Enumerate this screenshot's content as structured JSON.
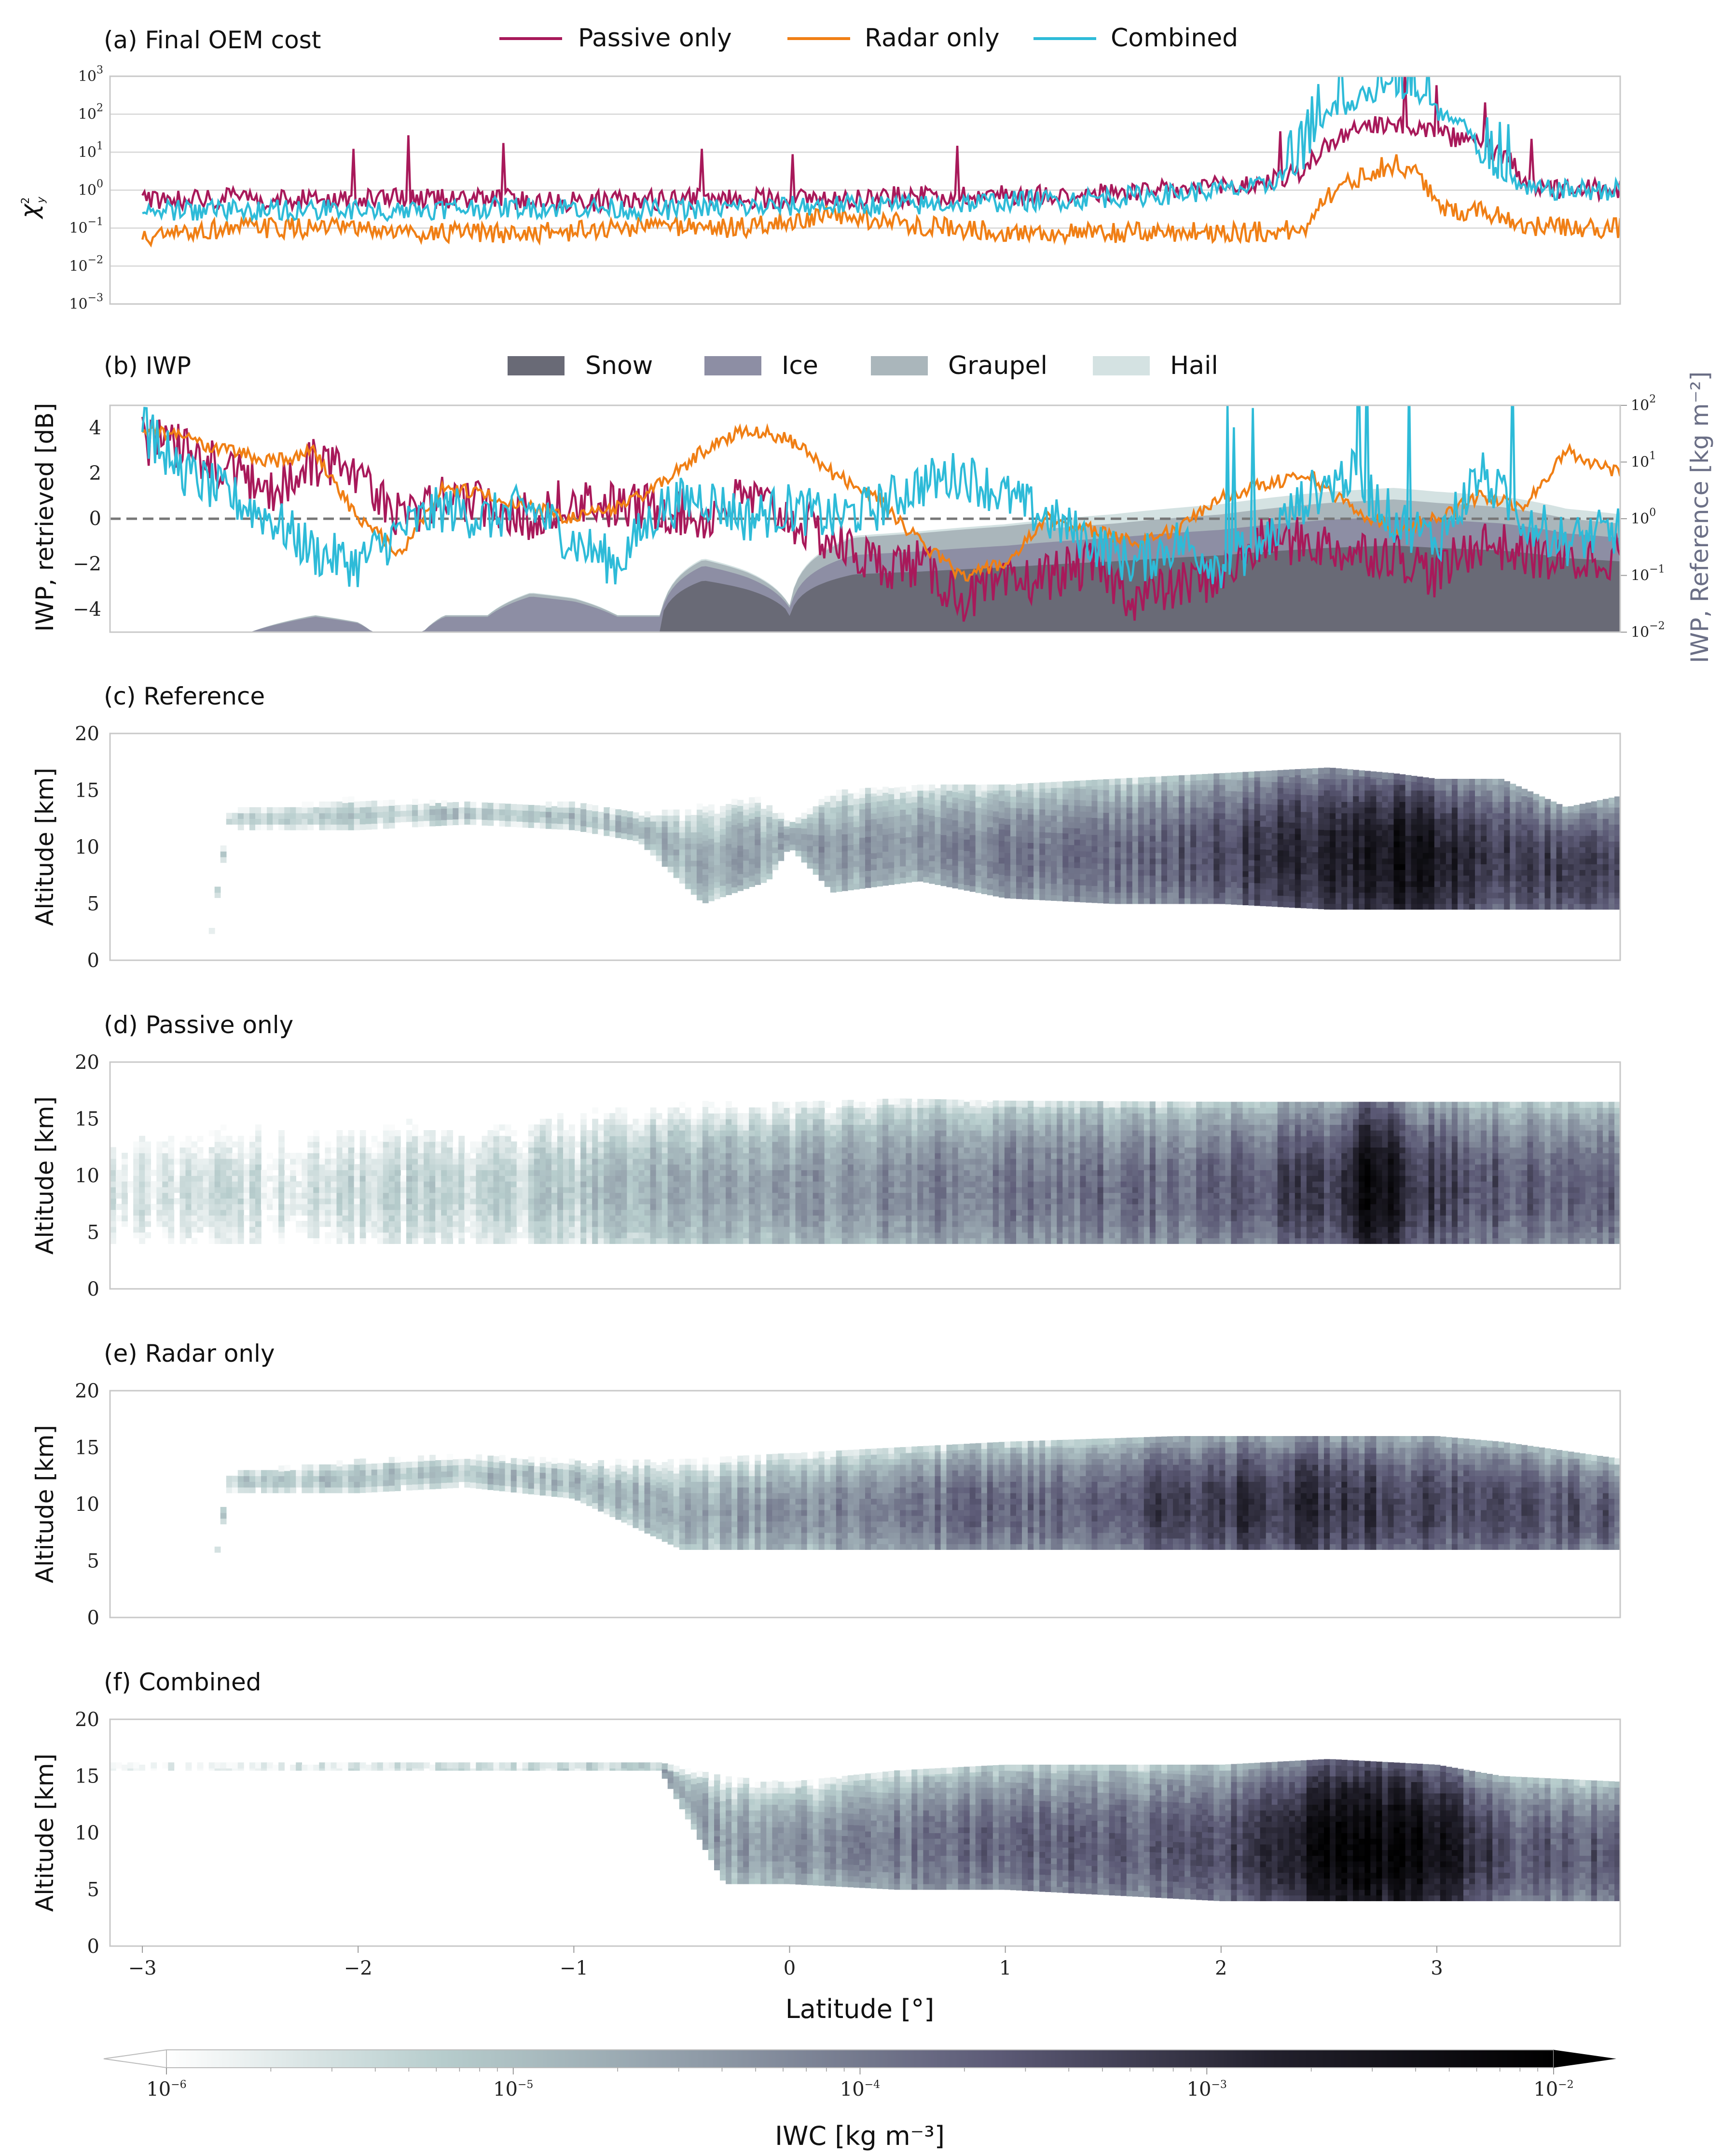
{
  "chart_data": [
    {
      "id": "a",
      "type": "line",
      "title": "(a) Final OEM cost",
      "ylabel": "χ²y",
      "yscale": "log",
      "ylim_exp": [
        -3,
        3
      ],
      "ytick_exps": [
        -3,
        -2,
        -1,
        0,
        1,
        2,
        3
      ],
      "grid": true,
      "legend_placement": "top",
      "colors": {
        "Passive only": "#a8195a",
        "Radar only": "#f07f15",
        "Combined": "#2ebbd8"
      },
      "series": [
        {
          "name": "Passive only",
          "x": [
            -3.0,
            -2.6,
            -2.2,
            -1.8,
            -1.4,
            -1.0,
            -0.6,
            -0.2,
            0.2,
            0.6,
            1.0,
            1.4,
            1.8,
            2.2,
            2.4,
            2.6,
            2.8,
            3.0,
            3.2,
            3.4,
            3.6,
            3.85
          ],
          "y": [
            0.6,
            0.6,
            0.55,
            0.6,
            0.6,
            0.5,
            0.55,
            0.6,
            0.6,
            0.7,
            0.75,
            0.8,
            1.0,
            1.5,
            3.0,
            30,
            60,
            30,
            15,
            1.2,
            1.0,
            1.0
          ]
        },
        {
          "name": "Radar only",
          "x": [
            -3.0,
            -2.6,
            -2.2,
            -1.8,
            -1.4,
            -1.0,
            -0.6,
            -0.2,
            0.2,
            0.6,
            1.0,
            1.4,
            1.8,
            2.2,
            2.4,
            2.6,
            2.8,
            3.0,
            3.2,
            3.4,
            3.6,
            3.85
          ],
          "y": [
            0.05,
            0.1,
            0.1,
            0.08,
            0.07,
            0.08,
            0.12,
            0.1,
            0.2,
            0.12,
            0.08,
            0.07,
            0.08,
            0.08,
            0.09,
            1.5,
            5.0,
            0.3,
            0.3,
            0.12,
            0.1,
            0.1
          ]
        },
        {
          "name": "Combined",
          "x": [
            -3.0,
            -2.6,
            -2.2,
            -1.8,
            -1.4,
            -1.0,
            -0.6,
            -0.2,
            0.2,
            0.6,
            1.0,
            1.4,
            1.8,
            2.2,
            2.4,
            2.6,
            2.8,
            3.0,
            3.2,
            3.4,
            3.6,
            3.85
          ],
          "y": [
            0.3,
            0.3,
            0.3,
            0.3,
            0.35,
            0.35,
            0.3,
            0.35,
            0.4,
            0.4,
            0.5,
            0.6,
            0.8,
            1.2,
            4.0,
            200,
            500,
            100,
            5.0,
            1.0,
            1.0,
            1.0
          ]
        }
      ]
    },
    {
      "id": "b",
      "type": "area",
      "title": "(b) IWP",
      "ylabel": "IWP, retrieved [dB]",
      "ylabel_right": "IWP, Reference [kg m⁻²]",
      "ylim": [
        -5,
        5
      ],
      "yticks": [
        -4,
        -2,
        0,
        2,
        4
      ],
      "right_yscale": "log",
      "right_ylim_exp": [
        -2,
        2
      ],
      "right_ytick_exps": [
        -2,
        -1,
        0,
        1,
        2
      ],
      "legend_placement": "top",
      "stack_labels": [
        "Snow",
        "Ice",
        "Graupel",
        "Hail"
      ],
      "stack_colors": {
        "Snow": "#696a76",
        "Ice": "#8d8ea4",
        "Graupel": "#aab6bb",
        "Hail": "#d4e2e2"
      },
      "reference_total_kg_m2": {
        "x": [
          -3.0,
          -2.5,
          -2.2,
          -2.0,
          -1.8,
          -1.6,
          -1.4,
          -1.2,
          -1.0,
          -0.8,
          -0.6,
          -0.4,
          -0.2,
          0.0,
          0.3,
          0.6,
          1.0,
          1.5,
          2.0,
          2.5,
          2.8,
          3.0,
          3.3,
          3.6,
          3.85
        ],
        "y": [
          0.0,
          0.01,
          0.02,
          0.015,
          0.0,
          0.02,
          0.02,
          0.05,
          0.04,
          0.02,
          0.02,
          0.2,
          0.12,
          0.03,
          0.5,
          0.6,
          0.8,
          1.2,
          1.8,
          3.0,
          3.5,
          3.0,
          2.5,
          1.5,
          1.2
        ]
      },
      "series": [
        {
          "name": "Passive only",
          "x": [
            -3.0,
            -2.8,
            -2.6,
            -2.4,
            -2.2,
            -2.0,
            -1.8,
            -1.6,
            -1.4,
            -1.2,
            -1.0,
            -0.8,
            -0.6,
            -0.4,
            -0.2,
            0.0,
            0.2,
            0.4,
            0.6,
            0.8,
            1.0,
            1.2,
            1.4,
            1.6,
            1.8,
            2.0,
            2.2,
            2.4,
            2.6,
            2.8,
            3.0,
            3.2,
            3.4,
            3.6,
            3.85
          ],
          "y": [
            3.5,
            3.0,
            2.0,
            1.0,
            2.5,
            1.5,
            0.0,
            1.0,
            0.5,
            0.0,
            1.0,
            0.5,
            0.5,
            0.0,
            1.0,
            0.0,
            -1.0,
            -2.0,
            -2.0,
            -3.5,
            -3.0,
            -2.5,
            -2.0,
            -3.5,
            -3.0,
            -2.5,
            -1.0,
            -1.0,
            -1.5,
            -1.5,
            -2.5,
            -1.0,
            -1.5,
            -2.0,
            -1.5
          ]
        },
        {
          "name": "Radar only",
          "x": [
            -3.0,
            -2.8,
            -2.6,
            -2.4,
            -2.2,
            -2.0,
            -1.8,
            -1.6,
            -1.4,
            -1.2,
            -1.0,
            -0.8,
            -0.6,
            -0.4,
            -0.2,
            0.0,
            0.2,
            0.4,
            0.6,
            0.8,
            1.0,
            1.2,
            1.4,
            1.6,
            1.8,
            2.0,
            2.2,
            2.4,
            2.6,
            2.8,
            3.0,
            3.2,
            3.4,
            3.6,
            3.85
          ],
          "y": [
            4.0,
            3.5,
            3.0,
            2.5,
            3.0,
            0.0,
            -1.5,
            1.5,
            1.0,
            0.5,
            0.0,
            0.5,
            1.5,
            3.0,
            4.0,
            3.5,
            2.0,
            1.0,
            -1.0,
            -2.5,
            -2.0,
            0.0,
            -0.5,
            -1.0,
            -0.5,
            1.0,
            1.5,
            2.0,
            0.5,
            -0.5,
            0.0,
            1.0,
            0.5,
            3.0,
            2.0
          ]
        },
        {
          "name": "Combined",
          "x": [
            -3.0,
            -2.8,
            -2.6,
            -2.4,
            -2.2,
            -2.0,
            -1.8,
            -1.6,
            -1.4,
            -1.2,
            -1.0,
            -0.8,
            -0.6,
            -0.4,
            -0.2,
            0.0,
            0.2,
            0.4,
            0.6,
            0.8,
            1.0,
            1.2,
            1.4,
            1.6,
            1.8,
            2.0,
            2.2,
            2.4,
            2.6,
            2.8,
            3.0,
            3.2,
            3.4,
            3.6,
            3.85
          ],
          "y": [
            4.0,
            2.0,
            1.0,
            0.0,
            -1.5,
            -2.0,
            -0.5,
            0.5,
            0.0,
            0.5,
            -1.0,
            -2.0,
            0.5,
            1.0,
            0.0,
            0.5,
            0.0,
            0.5,
            1.5,
            2.0,
            1.0,
            0.0,
            -1.0,
            -2.0,
            -1.0,
            -2.0,
            -1.0,
            1.0,
            2.0,
            0.0,
            -1.0,
            2.0,
            0.0,
            -1.0,
            -0.5
          ]
        }
      ]
    },
    {
      "id": "c",
      "type": "heatmap",
      "title": "(c) Reference",
      "ylabel": "Altitude [km]",
      "ylim": [
        0,
        20
      ],
      "yticks": [
        0,
        5,
        10,
        15,
        20
      ],
      "cloud_top_km": {
        "x": [
          -3.0,
          -2.7,
          -2.6,
          -2.0,
          -1.5,
          -1.0,
          -0.7,
          -0.4,
          -0.1,
          0.0,
          0.2,
          0.6,
          1.0,
          1.5,
          2.0,
          2.5,
          2.8,
          3.0,
          3.3,
          3.6,
          3.85
        ],
        "y": [
          0,
          0,
          13.5,
          14.5,
          14.0,
          14.0,
          13.0,
          14.0,
          14.5,
          12.0,
          15.0,
          15.5,
          15.5,
          16.0,
          16.5,
          17.0,
          16.5,
          16.0,
          16.0,
          13.5,
          14.5
        ]
      },
      "cloud_base_km": {
        "x": [
          -3.0,
          -2.7,
          -2.6,
          -2.0,
          -1.5,
          -1.0,
          -0.7,
          -0.4,
          -0.1,
          0.0,
          0.2,
          0.6,
          1.0,
          1.5,
          2.0,
          2.5,
          2.8,
          3.0,
          3.3,
          3.6,
          3.85
        ],
        "y": [
          0,
          0,
          11.5,
          11.5,
          12.0,
          11.5,
          10.5,
          5.0,
          7.0,
          10.0,
          6.0,
          7.0,
          5.5,
          5.0,
          5.0,
          4.5,
          4.5,
          4.5,
          4.5,
          4.5,
          4.5
        ]
      },
      "log10_iwc_max": {
        "x": [
          -3.0,
          -2.0,
          -1.0,
          0.0,
          0.5,
          1.0,
          1.5,
          1.8,
          2.0,
          2.5,
          2.8,
          3.0,
          3.3,
          3.85
        ],
        "y": [
          -5.3,
          -5.2,
          -5.0,
          -4.6,
          -4.3,
          -4.1,
          -3.9,
          -3.6,
          -3.3,
          -2.8,
          -2.4,
          -2.7,
          -3.2,
          -3.3
        ]
      }
    },
    {
      "id": "d",
      "type": "heatmap",
      "title": "(d) Passive only",
      "ylabel": "Altitude [km]",
      "ylim": [
        0,
        20
      ],
      "yticks": [
        0,
        5,
        10,
        15,
        20
      ],
      "cloud_top_km": {
        "x": [
          -3.0,
          -1.0,
          0.0,
          0.5,
          1.0,
          2.0,
          3.0,
          3.85
        ],
        "y": [
          16.5,
          16.7,
          16.5,
          16.8,
          16.6,
          16.5,
          16.5,
          16.5
        ]
      },
      "cloud_base_km": {
        "x": [
          -3.0,
          -1.0,
          0.0,
          0.5,
          1.0,
          2.0,
          3.0,
          3.85
        ],
        "y": [
          4.0,
          4.0,
          4.0,
          4.0,
          4.0,
          4.0,
          4.0,
          4.0
        ]
      },
      "log10_iwc_max": {
        "x": [
          -3.0,
          -2.0,
          -1.0,
          -0.5,
          0.0,
          0.5,
          1.0,
          2.0,
          2.5,
          2.7,
          2.9,
          3.3,
          3.85
        ],
        "y": [
          -5.7,
          -5.5,
          -5.2,
          -4.7,
          -4.6,
          -4.2,
          -4.0,
          -3.7,
          -3.2,
          -2.2,
          -3.0,
          -3.6,
          -3.7
        ]
      }
    },
    {
      "id": "e",
      "type": "heatmap",
      "title": "(e) Radar only",
      "ylabel": "Altitude [km]",
      "ylim": [
        0,
        20
      ],
      "yticks": [
        0,
        5,
        10,
        15,
        20
      ],
      "cloud_top_km": {
        "x": [
          -3.0,
          -2.7,
          -2.6,
          -2.0,
          -1.5,
          -1.0,
          -0.5,
          0.0,
          0.5,
          1.0,
          1.8,
          2.5,
          3.0,
          3.3,
          3.85
        ],
        "y": [
          0,
          0,
          13.0,
          14.0,
          14.5,
          14.0,
          14.0,
          14.5,
          15.0,
          15.5,
          16.0,
          16.0,
          16.0,
          15.5,
          14.0
        ]
      },
      "cloud_base_km": {
        "x": [
          -3.0,
          -2.7,
          -2.6,
          -2.0,
          -1.5,
          -1.0,
          -0.5,
          0.0,
          0.5,
          1.0,
          1.8,
          2.5,
          3.0,
          3.3,
          3.85
        ],
        "y": [
          0,
          0,
          11.0,
          11.0,
          11.5,
          10.5,
          6.0,
          6.0,
          6.0,
          6.0,
          6.0,
          6.0,
          6.0,
          6.0,
          6.0
        ]
      },
      "log10_iwc_max": {
        "x": [
          -3.0,
          -2.0,
          -1.0,
          0.0,
          0.5,
          1.0,
          1.5,
          1.8,
          2.0,
          2.5,
          3.0,
          3.3,
          3.85
        ],
        "y": [
          -5.3,
          -5.1,
          -4.9,
          -4.4,
          -4.0,
          -3.8,
          -3.6,
          -3.2,
          -3.1,
          -3.0,
          -3.3,
          -3.5,
          -3.6
        ]
      }
    },
    {
      "id": "f",
      "type": "heatmap",
      "title": "(f) Combined",
      "ylabel": "Altitude [km]",
      "ylim": [
        0,
        20
      ],
      "yticks": [
        0,
        5,
        10,
        15,
        20
      ],
      "cloud_top_km": {
        "x": [
          -3.0,
          -2.0,
          -1.0,
          -0.6,
          -0.3,
          0.0,
          0.5,
          1.0,
          2.0,
          2.5,
          3.0,
          3.3,
          3.85
        ],
        "y": [
          16.2,
          16.2,
          16.2,
          16.2,
          15.0,
          14.5,
          15.5,
          16.0,
          16.0,
          16.5,
          16.0,
          15.0,
          14.5
        ]
      },
      "cloud_base_km": {
        "x": [
          -3.0,
          -2.0,
          -1.0,
          -0.6,
          -0.3,
          0.0,
          0.5,
          1.0,
          2.0,
          2.5,
          3.0,
          3.3,
          3.85
        ],
        "y": [
          15.5,
          15.5,
          15.5,
          15.5,
          5.5,
          5.5,
          5.0,
          5.0,
          4.0,
          4.0,
          4.0,
          4.0,
          4.0
        ]
      },
      "log10_iwc_max": {
        "x": [
          -3.0,
          -2.0,
          -1.0,
          -0.5,
          0.0,
          0.5,
          1.0,
          1.8,
          2.0,
          2.5,
          2.7,
          3.0,
          3.3,
          3.85
        ],
        "y": [
          -5.4,
          -5.2,
          -5.0,
          -4.6,
          -4.4,
          -4.0,
          -3.8,
          -3.6,
          -3.4,
          -2.3,
          -2.1,
          -2.4,
          -3.5,
          -3.6
        ]
      }
    }
  ],
  "xaxis": {
    "label": "Latitude [°]",
    "ticks": [
      -3,
      -2,
      -1,
      0,
      1,
      2,
      3
    ],
    "lim": [
      -3.15,
      3.85
    ]
  },
  "colorbar": {
    "label": "IWC [kg m⁻³]",
    "scale": "log",
    "lim_exp": [
      -6,
      -2
    ],
    "tick_exps": [
      -6,
      -5,
      -4,
      -3,
      -2
    ],
    "stops": [
      "#ffffff",
      "#b6cccc",
      "#8c97a4",
      "#5c5a76",
      "#22202c",
      "#000000"
    ]
  }
}
